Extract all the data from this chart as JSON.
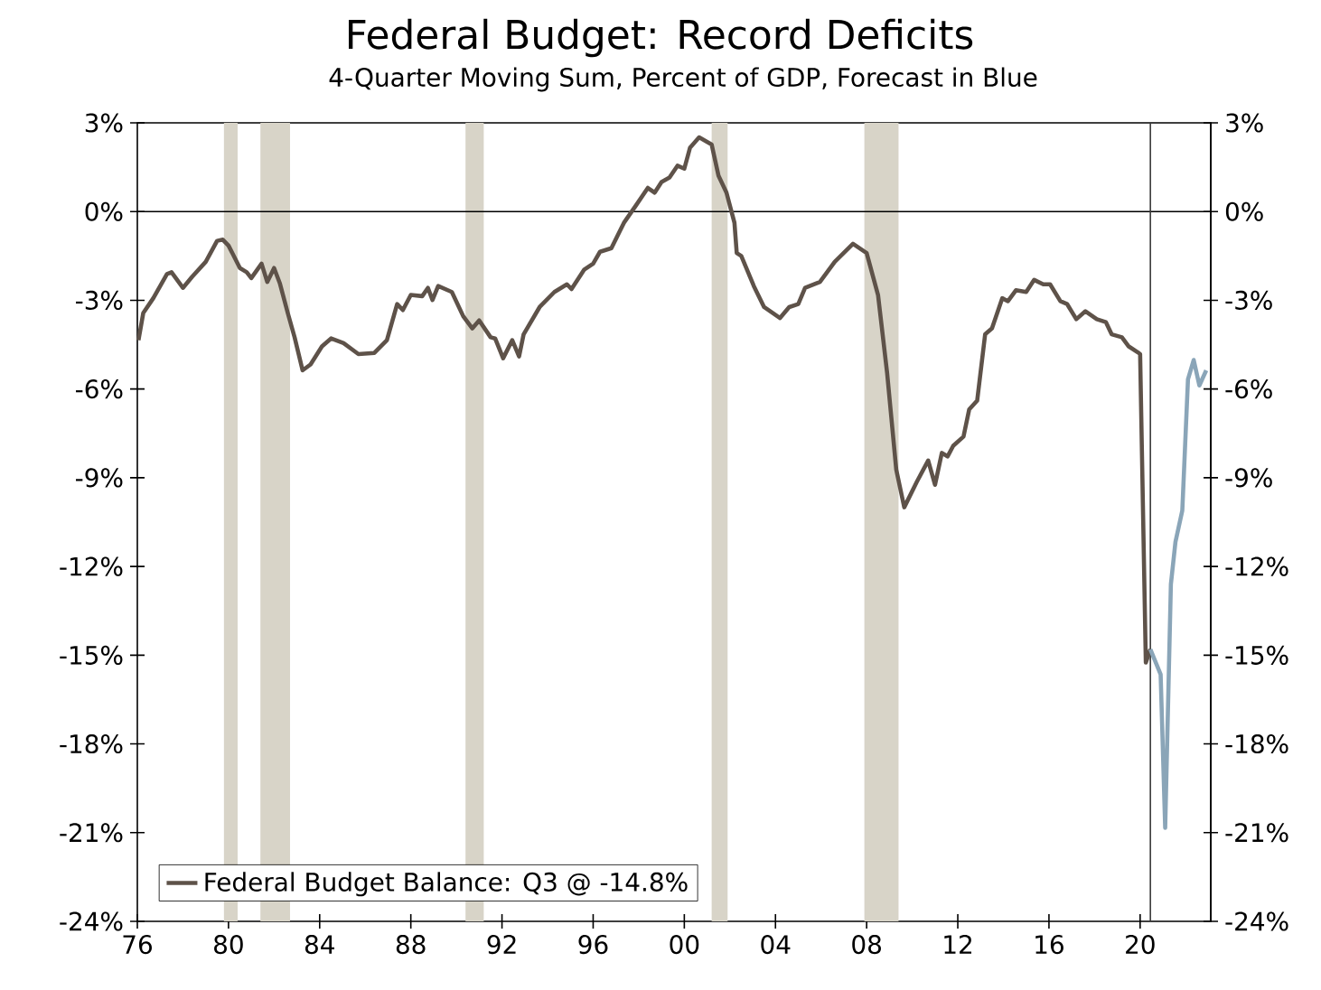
{
  "chart_data": {
    "type": "line",
    "title": "Federal Budget: Record Deficits",
    "subtitle": "4-Quarter Moving Sum, Percent of GDP, Forecast in Blue",
    "xlim": [
      1976,
      2023.1
    ],
    "xticks": [
      {
        "value": 1976,
        "label": "76"
      },
      {
        "value": 1980,
        "label": "80"
      },
      {
        "value": 1984,
        "label": "84"
      },
      {
        "value": 1988,
        "label": "88"
      },
      {
        "value": 1992,
        "label": "92"
      },
      {
        "value": 1996,
        "label": "96"
      },
      {
        "value": 2000,
        "label": "00"
      },
      {
        "value": 2004,
        "label": "04"
      },
      {
        "value": 2008,
        "label": "08"
      },
      {
        "value": 2012,
        "label": "12"
      },
      {
        "value": 2016,
        "label": "16"
      },
      {
        "value": 2020,
        "label": "20"
      }
    ],
    "ylim": [
      -24,
      3
    ],
    "yticks": [
      {
        "value": 3,
        "label": "3%"
      },
      {
        "value": 0,
        "label": "0%"
      },
      {
        "value": -3,
        "label": "-3%"
      },
      {
        "value": -6,
        "label": "-6%"
      },
      {
        "value": -9,
        "label": "-9%"
      },
      {
        "value": -12,
        "label": "-12%"
      },
      {
        "value": -15,
        "label": "-15%"
      },
      {
        "value": -18,
        "label": "-18%"
      },
      {
        "value": -21,
        "label": "-21%"
      },
      {
        "value": -24,
        "label": "-24%"
      }
    ],
    "y2lim": [
      -24,
      3
    ],
    "y2ticks": [
      {
        "value": 3,
        "label": "3%"
      },
      {
        "value": 0,
        "label": "0%"
      },
      {
        "value": -3,
        "label": "-3%"
      },
      {
        "value": -6,
        "label": "-6%"
      },
      {
        "value": -9,
        "label": "-9%"
      },
      {
        "value": -12,
        "label": "-12%"
      },
      {
        "value": -15,
        "label": "-15%"
      },
      {
        "value": -18,
        "label": "-18%"
      },
      {
        "value": -21,
        "label": "-21%"
      },
      {
        "value": -24,
        "label": "-24%"
      }
    ],
    "legend": "bottom left",
    "series": [
      {
        "name": "Federal Budget Balance: Q3 @ -14.8%",
        "color": "#5e5249",
        "x": [
          1976.05,
          1976.26,
          1976.7,
          1977.3,
          1977.5,
          1978.0,
          1978.4,
          1979.0,
          1979.5,
          1979.75,
          1980.0,
          1980.5,
          1980.8,
          1981.0,
          1981.45,
          1981.7,
          1982.0,
          1982.25,
          1982.6,
          1982.9,
          1983.25,
          1983.6,
          1984.1,
          1984.5,
          1985.05,
          1985.7,
          1986.4,
          1986.95,
          1987.4,
          1987.65,
          1988.0,
          1988.5,
          1988.75,
          1988.95,
          1989.2,
          1989.8,
          1990.3,
          1990.7,
          1991.0,
          1991.5,
          1991.7,
          1992.05,
          1992.45,
          1992.75,
          1992.95,
          1993.65,
          1994.3,
          1994.85,
          1995.05,
          1995.6,
          1996.0,
          1996.3,
          1996.8,
          1997.35,
          1997.9,
          1998.4,
          1998.7,
          1999.0,
          1999.35,
          1999.7,
          2000.0,
          2000.25,
          2000.65,
          2001.2,
          2001.5,
          2001.85,
          2002.2,
          2002.3,
          2002.5,
          2003.05,
          2003.5,
          2004.2,
          2004.6,
          2005.0,
          2005.3,
          2005.95,
          2006.6,
          2007.4,
          2008.0,
          2008.5,
          2008.9,
          2009.3,
          2009.65,
          2010.2,
          2010.7,
          2011.0,
          2011.3,
          2011.55,
          2011.8,
          2012.25,
          2012.5,
          2012.85,
          2013.2,
          2013.5,
          2013.95,
          2014.2,
          2014.55,
          2015.0,
          2015.35,
          2015.75,
          2016.05,
          2016.5,
          2016.8,
          2017.2,
          2017.6,
          2018.1,
          2018.5,
          2018.75,
          2019.2,
          2019.5,
          2019.9,
          2020.0,
          2020.25,
          2020.45
        ],
        "values": [
          -4.35,
          -3.43,
          -2.93,
          -2.11,
          -2.05,
          -2.58,
          -2.21,
          -1.7,
          -0.99,
          -0.95,
          -1.15,
          -1.91,
          -2.05,
          -2.25,
          -1.76,
          -2.38,
          -1.91,
          -2.42,
          -3.43,
          -4.25,
          -5.37,
          -5.17,
          -4.56,
          -4.29,
          -4.45,
          -4.82,
          -4.78,
          -4.35,
          -3.13,
          -3.33,
          -2.82,
          -2.86,
          -2.58,
          -2.99,
          -2.52,
          -2.72,
          -3.54,
          -3.95,
          -3.68,
          -4.25,
          -4.29,
          -4.96,
          -4.35,
          -4.9,
          -4.15,
          -3.23,
          -2.72,
          -2.46,
          -2.62,
          -1.97,
          -1.76,
          -1.36,
          -1.24,
          -0.38,
          0.23,
          0.8,
          0.64,
          1.0,
          1.15,
          1.55,
          1.45,
          2.16,
          2.51,
          2.27,
          1.21,
          0.64,
          -0.38,
          -1.4,
          -1.5,
          -2.52,
          -3.23,
          -3.6,
          -3.23,
          -3.13,
          -2.58,
          -2.38,
          -1.7,
          -1.09,
          -1.4,
          -2.82,
          -5.47,
          -8.73,
          -10.0,
          -9.14,
          -8.42,
          -9.24,
          -8.16,
          -8.28,
          -7.92,
          -7.61,
          -6.69,
          -6.39,
          -4.15,
          -3.95,
          -2.93,
          -3.03,
          -2.66,
          -2.72,
          -2.31,
          -2.46,
          -2.46,
          -3.03,
          -3.13,
          -3.64,
          -3.37,
          -3.64,
          -3.74,
          -4.15,
          -4.25,
          -4.56,
          -4.76,
          -4.82,
          -15.25,
          -14.8
        ]
      },
      {
        "color": "#8aa5b8",
        "x": [
          2020.45,
          2020.9,
          2021.1,
          2021.35,
          2021.55,
          2021.85,
          2022.1,
          2022.35,
          2022.6,
          2022.9
        ],
        "values": [
          -14.8,
          -15.65,
          -20.84,
          -12.6,
          -11.17,
          -10.11,
          -5.67,
          -5.02,
          -5.88,
          -5.37
        ]
      }
    ],
    "ref_lines": [
      {
        "axis": "y",
        "value": 0,
        "color": "#000000"
      },
      {
        "axis": "x",
        "value": 2020.45,
        "color": "#3a3a3a"
      }
    ],
    "bands": [
      {
        "axis": "x",
        "from": 1979.8,
        "to": 1980.4,
        "color": "#d8d4c8"
      },
      {
        "axis": "x",
        "from": 1981.4,
        "to": 1982.7,
        "color": "#d8d4c8"
      },
      {
        "axis": "x",
        "from": 1990.4,
        "to": 1991.2,
        "color": "#d8d4c8"
      },
      {
        "axis": "x",
        "from": 2001.2,
        "to": 2001.9,
        "color": "#d8d4c8"
      },
      {
        "axis": "x",
        "from": 2007.9,
        "to": 2009.4,
        "color": "#d8d4c8"
      }
    ]
  }
}
